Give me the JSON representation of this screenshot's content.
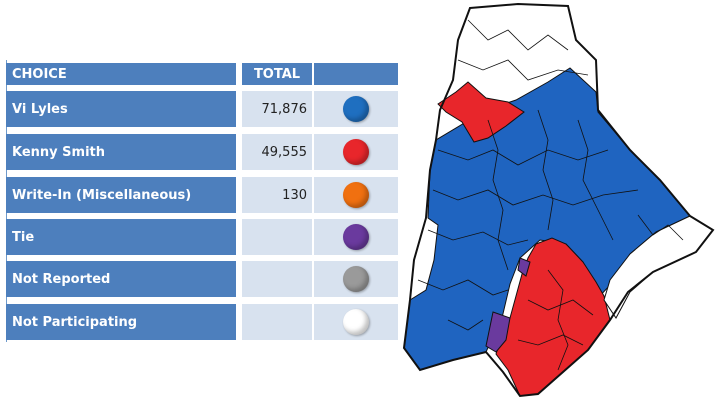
{
  "table": {
    "header": {
      "choice": "CHOICE",
      "total": "TOTAL"
    },
    "rows": [
      {
        "choice": "Vi Lyles",
        "total": "71,876",
        "color": "#1f6fc0"
      },
      {
        "choice": "Kenny Smith",
        "total": "49,555",
        "color": "#e8262b"
      },
      {
        "choice": "Write-In (Miscellaneous)",
        "total": "130",
        "color": "#f07010"
      },
      {
        "choice": "Tie",
        "total": "",
        "color": "#6a3a9e"
      },
      {
        "choice": "Not Reported",
        "total": "",
        "color": "#9a9a9a"
      },
      {
        "choice": "Not Participating",
        "total": "",
        "color": "#ffffff"
      }
    ]
  },
  "map": {
    "colors": {
      "blue": "#1f64c0",
      "red": "#e8262b",
      "purple": "#6a3a9e",
      "white": "#ffffff",
      "border": "#111111"
    }
  }
}
